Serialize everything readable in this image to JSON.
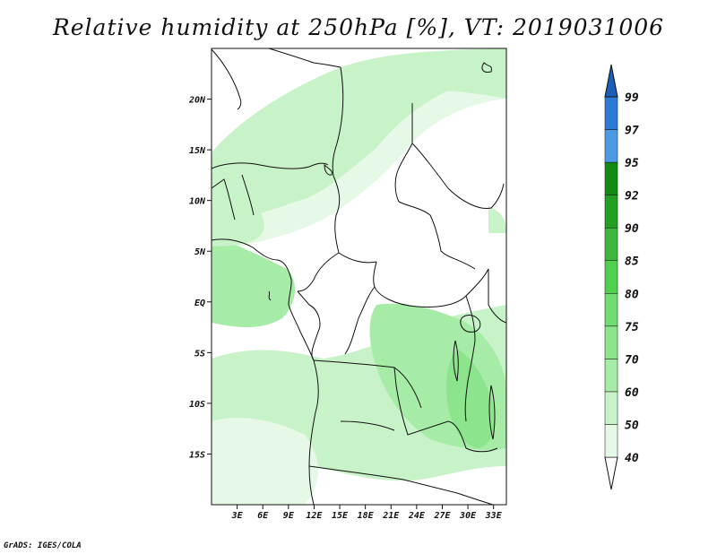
{
  "title": "Relative humidity at 250hPa [%], VT: 2019031006",
  "credit": "GrADS: IGES/COLA",
  "map": {
    "lon_range": [
      0,
      34.5
    ],
    "lat_range": [
      -20,
      25
    ],
    "y_ticks": [
      {
        "lat": 20,
        "label": "20N"
      },
      {
        "lat": 15,
        "label": "15N"
      },
      {
        "lat": 10,
        "label": "10N"
      },
      {
        "lat": 5,
        "label": "5N"
      },
      {
        "lat": 0,
        "label": "EQ"
      },
      {
        "lat": -5,
        "label": "5S"
      },
      {
        "lat": -10,
        "label": "10S"
      },
      {
        "lat": -15,
        "label": "15S"
      }
    ],
    "x_ticks": [
      {
        "lon": 3,
        "label": "3E"
      },
      {
        "lon": 6,
        "label": "6E"
      },
      {
        "lon": 9,
        "label": "9E"
      },
      {
        "lon": 12,
        "label": "12E"
      },
      {
        "lon": 15,
        "label": "15E"
      },
      {
        "lon": 18,
        "label": "18E"
      },
      {
        "lon": 21,
        "label": "21E"
      },
      {
        "lon": 24,
        "label": "24E"
      },
      {
        "lon": 27,
        "label": "27E"
      },
      {
        "lon": 30,
        "label": "30E"
      },
      {
        "lon": 33,
        "label": "33E"
      }
    ]
  },
  "colorbar": {
    "levels": [
      {
        "value": "40",
        "color": "#ffffff"
      },
      {
        "value": "50",
        "color": "#e6f9e6"
      },
      {
        "value": "60",
        "color": "#c8f2c8"
      },
      {
        "value": "70",
        "color": "#a6eba6"
      },
      {
        "value": "75",
        "color": "#8ce58c"
      },
      {
        "value": "80",
        "color": "#6edc6e"
      },
      {
        "value": "85",
        "color": "#4fd04f"
      },
      {
        "value": "90",
        "color": "#3cb93c"
      },
      {
        "value": "92",
        "color": "#22a022"
      },
      {
        "value": "95",
        "color": "#118c11"
      },
      {
        "value": "97",
        "color": "#4a9ae6"
      },
      {
        "value": "99",
        "color": "#2a7ad6"
      }
    ],
    "over_color": "#1c5fb8"
  }
}
